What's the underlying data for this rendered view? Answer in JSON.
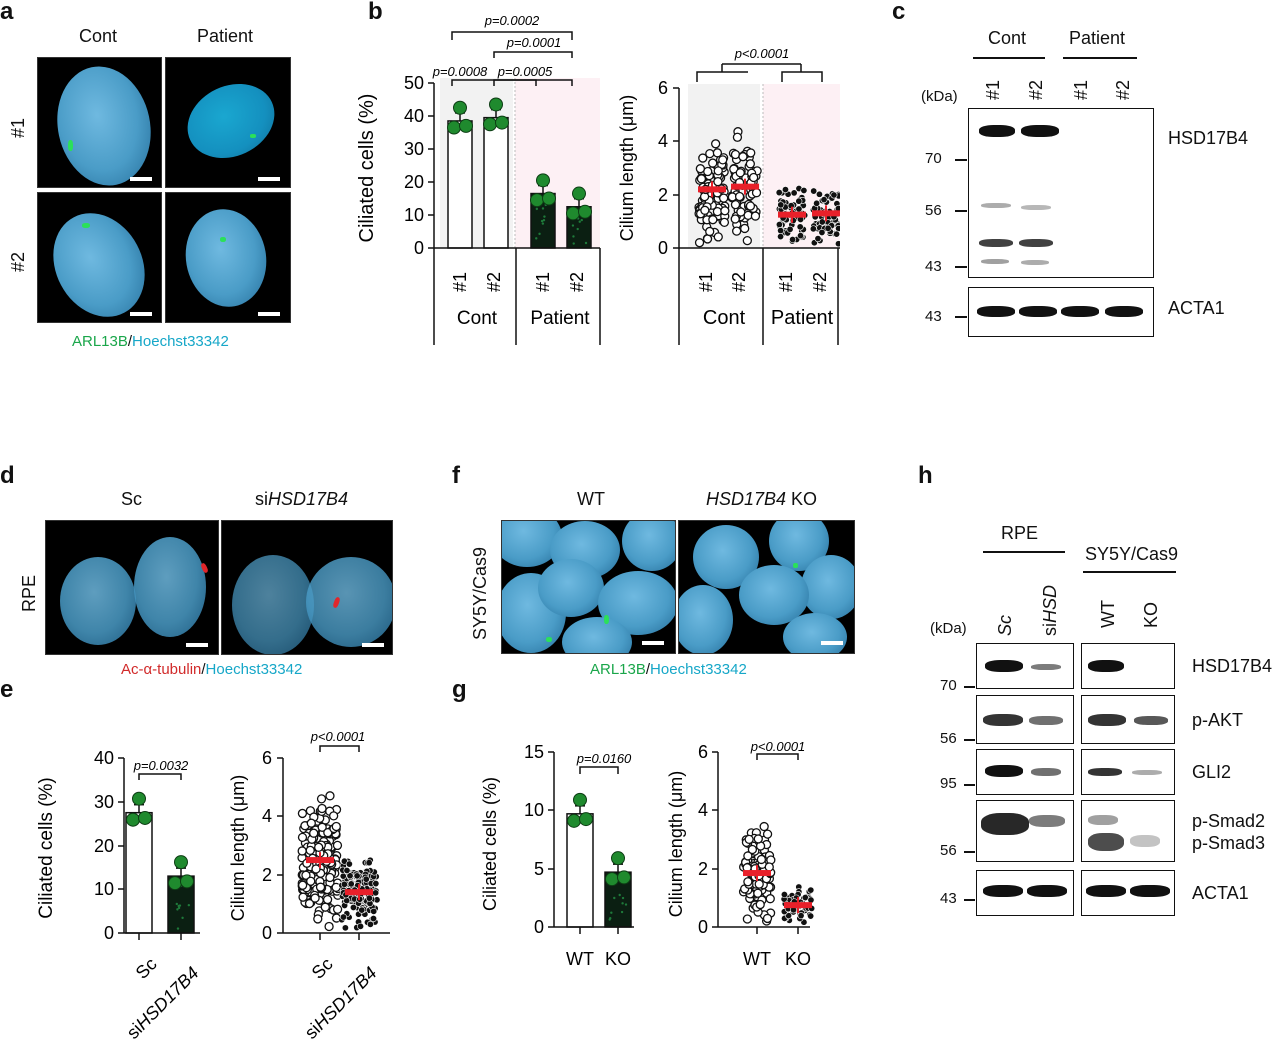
{
  "panels": {
    "a": {
      "letter": "a",
      "cols": [
        "Cont",
        "Patient"
      ],
      "rows": [
        "#1",
        "#2"
      ],
      "stain1": "ARL13B",
      "sep": "/",
      "stain2": "Hoechst33342"
    },
    "b": {
      "letter": "b",
      "ylabel_left": "Ciliated cells (%)",
      "yticks_left": [
        "50",
        "40",
        "30",
        "20",
        "10",
        "0"
      ],
      "ylabel_right": "Cilium length (μm)",
      "yticks_right": [
        "6",
        "4",
        "2",
        "0"
      ],
      "xticks": [
        "#1",
        "#2",
        "#1",
        "#2"
      ],
      "groups": [
        "Cont",
        "Patient"
      ],
      "pvals": [
        "p=0.0002",
        "p=0.0001",
        "p=0.0008",
        "p=0.0005",
        "p<0.0001"
      ]
    },
    "c": {
      "letter": "c",
      "groups": [
        "Cont",
        "Patient"
      ],
      "lanes": [
        "#1",
        "#2",
        "#1",
        "#2"
      ],
      "kda": "(kDa)",
      "markers_top": [
        "70",
        "56",
        "43"
      ],
      "marker_bottom": "43",
      "labels": [
        "HSD17B4",
        "ACTA1"
      ]
    },
    "d": {
      "letter": "d",
      "cols": [
        "Sc",
        "si",
        "HSD17B4"
      ],
      "row": "RPE",
      "stain1": "Ac-α-tubulin",
      "sep": "/",
      "stain2": "Hoechst33342"
    },
    "e": {
      "letter": "e",
      "ylabel_left": "Ciliated cells (%)",
      "yticks_left": [
        "40",
        "30",
        "20",
        "10",
        "0"
      ],
      "ylabel_right": "Cilium length (μm)",
      "yticks_right": [
        "6",
        "4",
        "2",
        "0"
      ],
      "xticks": [
        "Sc",
        "si",
        "HSD17B4"
      ],
      "pvals": [
        "p=0.0032",
        "p<0.0001"
      ]
    },
    "f": {
      "letter": "f",
      "cols": [
        "WT",
        "HSD17B4",
        " KO"
      ],
      "row": "SY5Y/Cas9",
      "stain1": "ARL13B",
      "sep": "/",
      "stain2": "Hoechst33342"
    },
    "g": {
      "letter": "g",
      "ylabel_left": "Ciliated cells (%)",
      "yticks_left": [
        "15",
        "10",
        "5",
        "0"
      ],
      "ylabel_right": "Cilium length (μm)",
      "yticks_right": [
        "6",
        "4",
        "2",
        "0"
      ],
      "xticks": [
        "WT",
        "KO"
      ],
      "pvals": [
        "p=0.0160",
        "p<0.0001"
      ]
    },
    "h": {
      "letter": "h",
      "groups": [
        "RPE",
        "SY5Y/Cas9"
      ],
      "lanes": [
        "Sc",
        "si",
        "HSD",
        "WT",
        "KO"
      ],
      "kda": "(kDa)",
      "markers": [
        "70",
        "56",
        "95",
        "56",
        "43"
      ],
      "labels": [
        "HSD17B4",
        "p-AKT",
        "GLI2",
        "p-Smad2",
        "p-Smad3",
        "ACTA1"
      ]
    }
  },
  "chart_data": [
    {
      "type": "bar",
      "panel": "b-left",
      "categories": [
        "Cont #1",
        "Cont #2",
        "Patient #1",
        "Patient #2"
      ],
      "values": [
        38.5,
        39.5,
        16.5,
        12.5
      ],
      "ylabel": "Ciliated cells (%)",
      "ylim": [
        0,
        50
      ]
    },
    {
      "type": "scatter",
      "panel": "b-right",
      "categories": [
        "Cont #1",
        "Cont #2",
        "Patient #1",
        "Patient #2"
      ],
      "means": [
        2.2,
        2.3,
        1.25,
        1.3
      ],
      "ylabel": "Cilium length (μm)",
      "ylim": [
        0,
        6
      ]
    },
    {
      "type": "bar",
      "panel": "e-left",
      "categories": [
        "Sc",
        "siHSD17B4"
      ],
      "values": [
        27.5,
        13
      ],
      "ylabel": "Ciliated cells (%)",
      "ylim": [
        0,
        40
      ]
    },
    {
      "type": "scatter",
      "panel": "e-right",
      "categories": [
        "Sc",
        "siHSD17B4"
      ],
      "means": [
        2.5,
        1.4
      ],
      "ylabel": "Cilium length (μm)",
      "ylim": [
        0,
        6
      ]
    },
    {
      "type": "bar",
      "panel": "g-left",
      "categories": [
        "WT",
        "KO"
      ],
      "values": [
        9.7,
        4.7
      ],
      "ylabel": "Ciliated cells (%)",
      "ylim": [
        0,
        15
      ]
    },
    {
      "type": "scatter",
      "panel": "g-right",
      "categories": [
        "WT",
        "KO"
      ],
      "means": [
        1.85,
        0.75
      ],
      "ylabel": "Cilium length (μm)",
      "ylim": [
        0,
        6
      ]
    }
  ]
}
